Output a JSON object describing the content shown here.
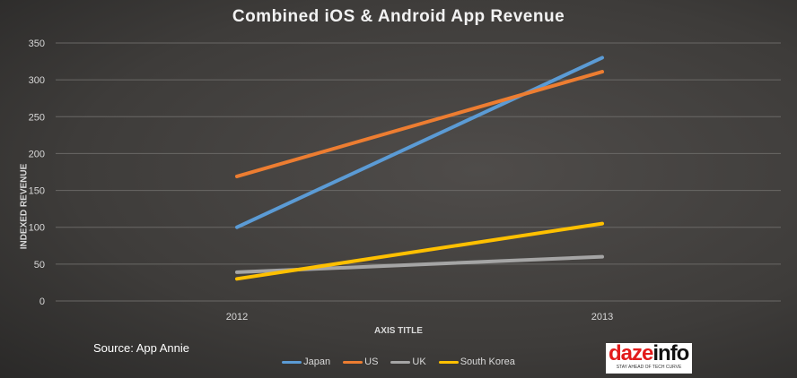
{
  "chart_data": {
    "type": "line",
    "title": "Combined iOS & Android App Revenue",
    "xlabel": "AXIS TITLE",
    "ylabel": "INDEXED REVENUE",
    "categories": [
      "2012",
      "2013"
    ],
    "ylim": [
      0,
      350
    ],
    "yticks": [
      0,
      50,
      100,
      150,
      200,
      250,
      300,
      350
    ],
    "grid": true,
    "legend": "bottom",
    "series": [
      {
        "name": "Japan",
        "values": [
          100,
          330
        ],
        "color": "#5b9bd5"
      },
      {
        "name": "US",
        "values": [
          169,
          311
        ],
        "color": "#ed7d31"
      },
      {
        "name": "UK",
        "values": [
          39,
          60
        ],
        "color": "#a5a5a5"
      },
      {
        "name": "South Korea",
        "values": [
          30,
          105
        ],
        "color": "#ffc000"
      }
    ]
  },
  "source": "Source: App Annie",
  "logo": {
    "text_a": "daze",
    "text_b": "info",
    "tagline": "STAY AHEAD OF TECH CURVE"
  }
}
